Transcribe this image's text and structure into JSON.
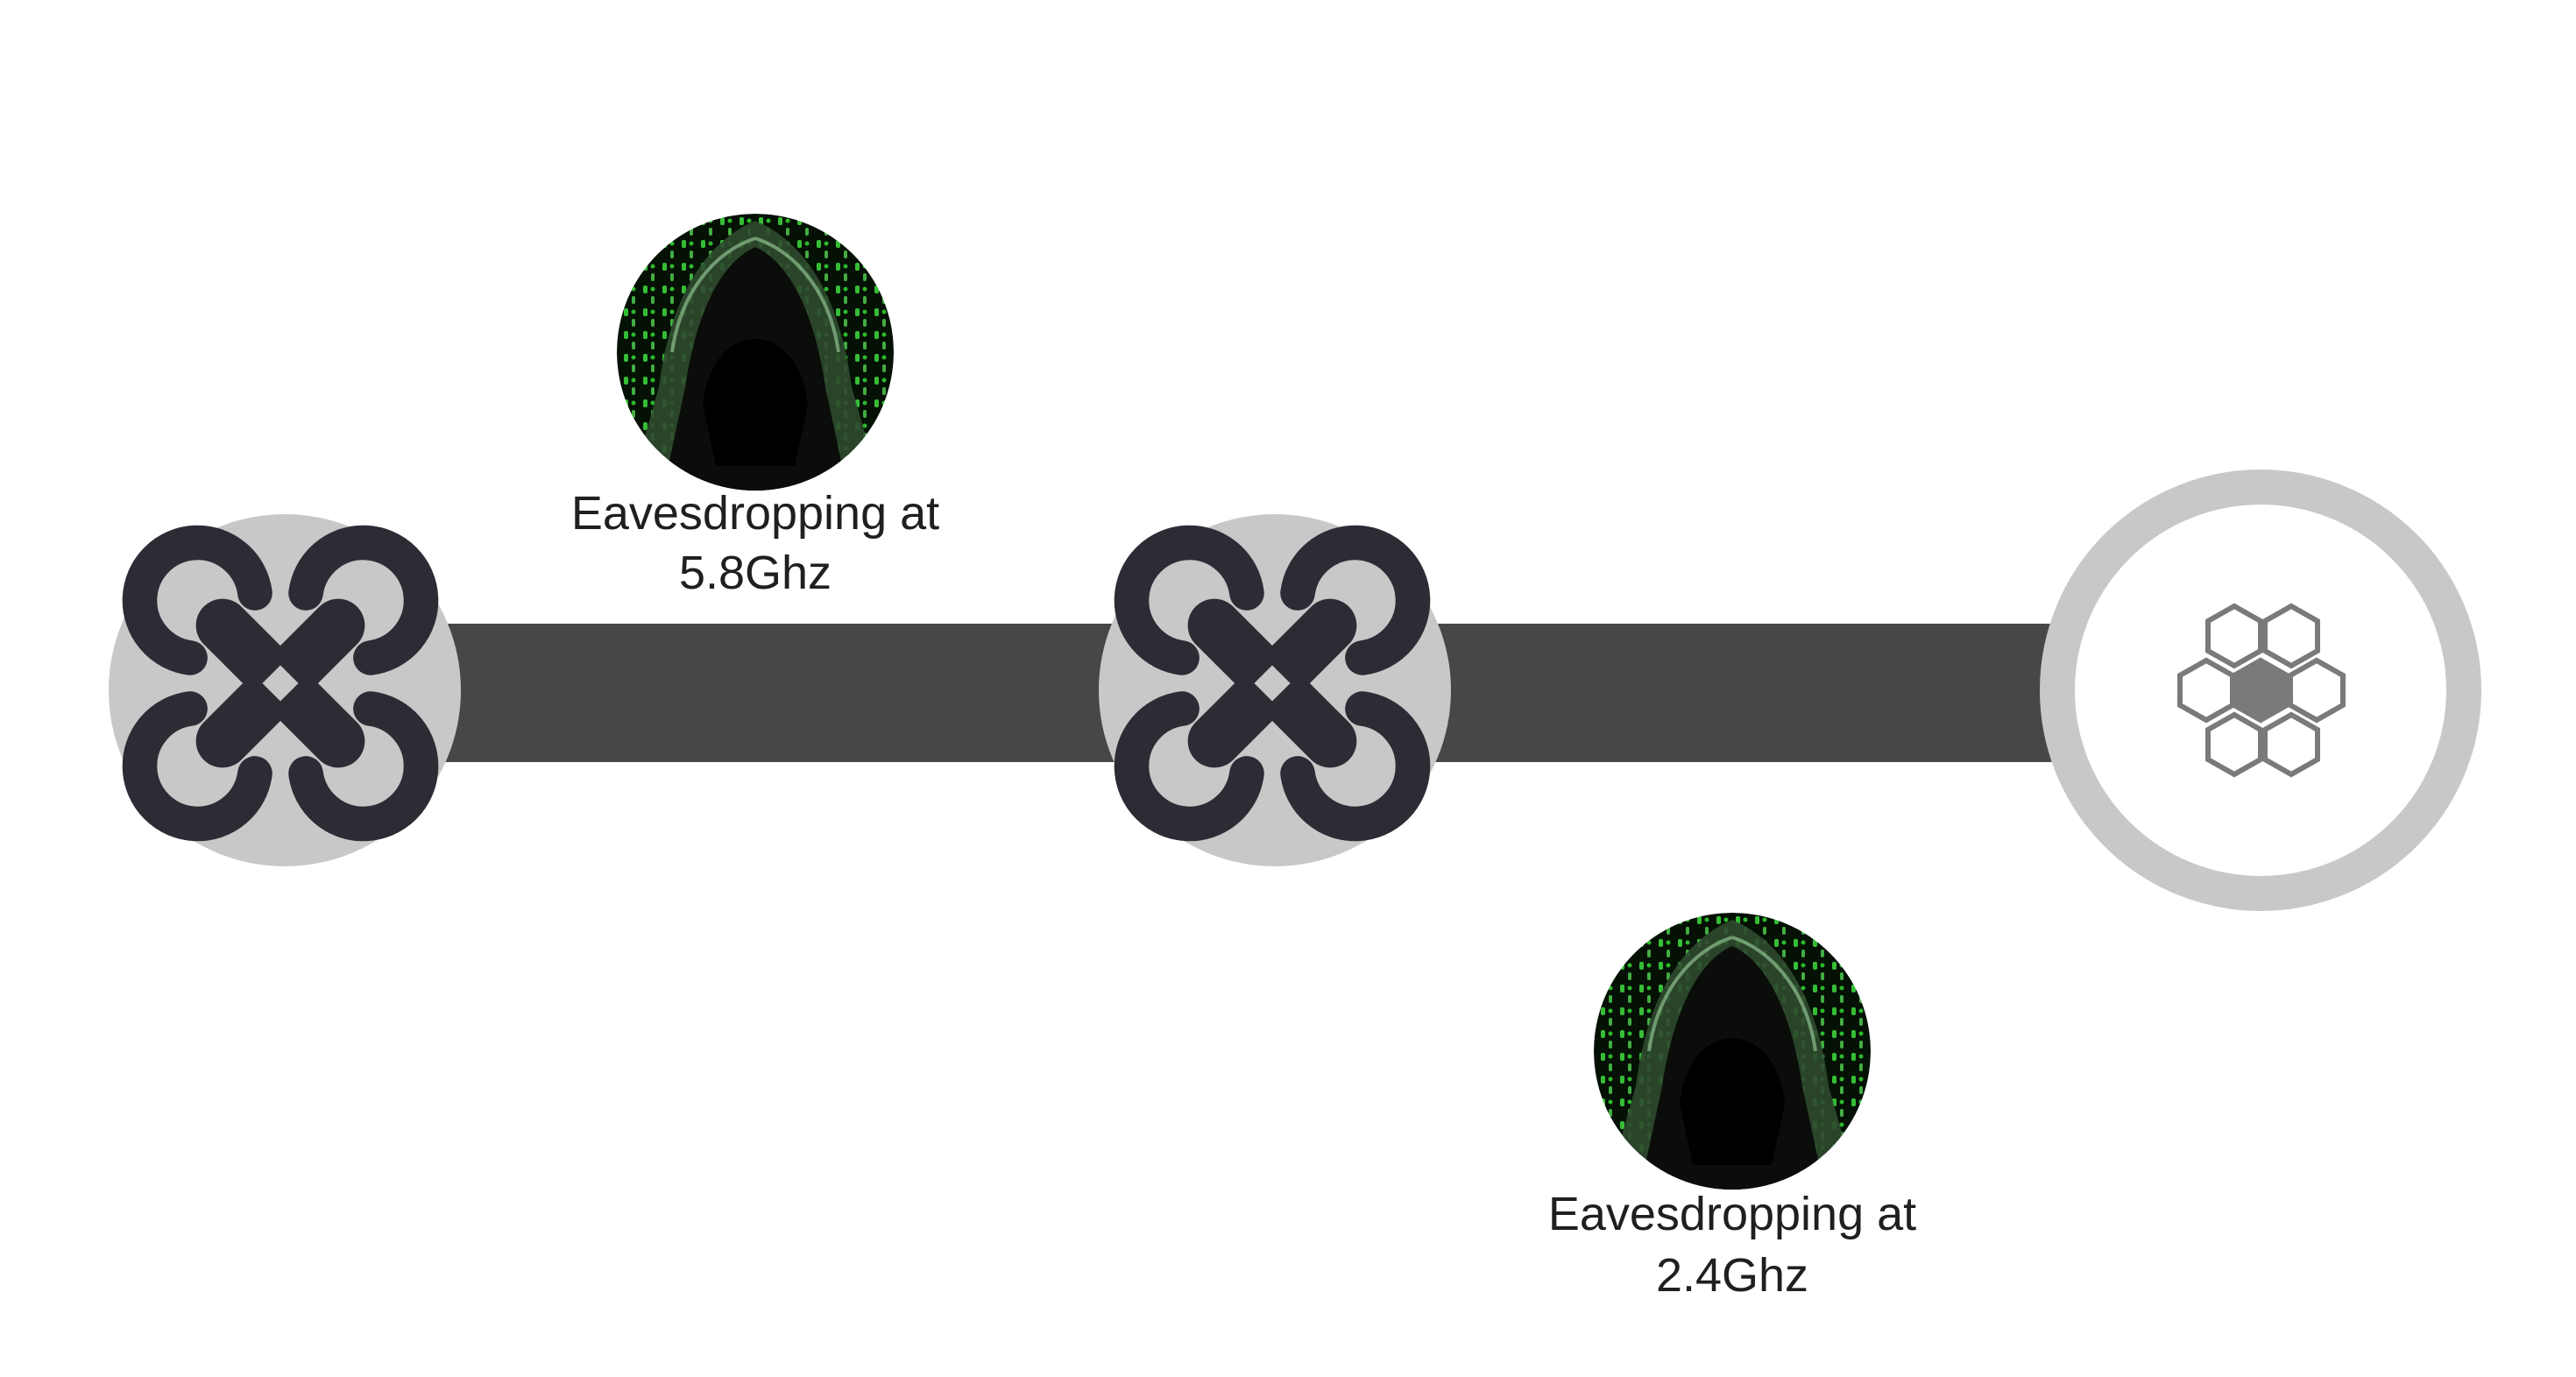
{
  "colors": {
    "background": "#ffffff",
    "link_bar": "#474747",
    "node_fill": "#c8c8c8",
    "drone_icon": "#2e2b35",
    "hub_icon": "#7a7a7a",
    "hacker_bg": "#061106",
    "matrix_green": "#3ddc3d"
  },
  "nodes": [
    {
      "id": "drone-1",
      "icon": "drone-icon"
    },
    {
      "id": "drone-2",
      "icon": "drone-icon"
    },
    {
      "id": "hub",
      "icon": "honeycomb-icon"
    }
  ],
  "links": [
    {
      "from": "drone-1",
      "to": "drone-2"
    },
    {
      "from": "drone-2",
      "to": "hub"
    }
  ],
  "attackers": [
    {
      "icon": "hooded-hacker-icon",
      "label": {
        "line1": "Eavesdropping at",
        "line2": "5.8Ghz"
      }
    },
    {
      "icon": "hooded-hacker-icon",
      "label": {
        "line1": "Eavesdropping at",
        "line2": "2.4Ghz"
      }
    }
  ]
}
